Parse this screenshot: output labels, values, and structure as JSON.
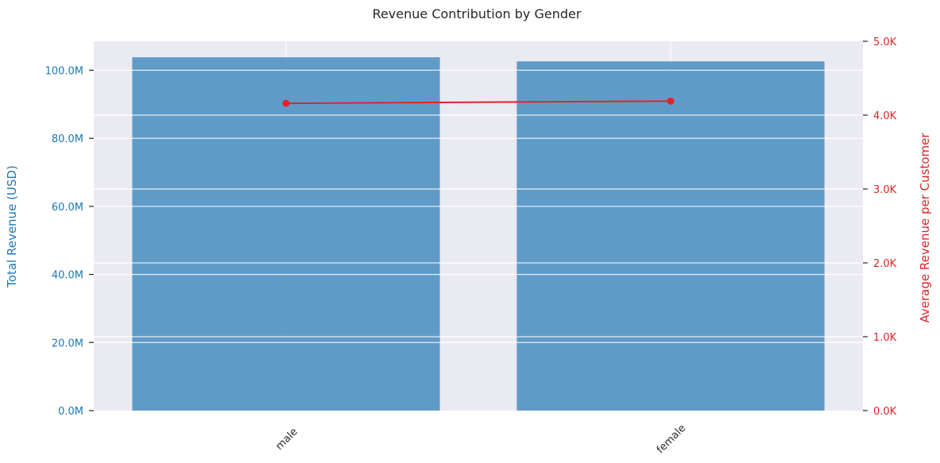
{
  "chart_data": {
    "type": "bar",
    "title": "Revenue Contribution by Gender",
    "categories": [
      "male",
      "female"
    ],
    "series": [
      {
        "axis": "left",
        "type": "bar",
        "values": [
          103800000,
          102600000
        ],
        "color": "#4c8fc2"
      },
      {
        "axis": "right",
        "type": "line",
        "values": [
          4160,
          4190
        ],
        "color": "#e0242a"
      }
    ],
    "ylabel": "Total Revenue (USD)",
    "ylabel_right": "Average Revenue per Customer",
    "ylim": [
      0,
      108500000
    ],
    "ylim_right": [
      0,
      5000
    ],
    "yticks": [
      "0.0M",
      "20.0M",
      "40.0M",
      "60.0M",
      "80.0M",
      "100.0M"
    ],
    "yticks_right": [
      "0.0K",
      "1.0K",
      "2.0K",
      "3.0K",
      "4.0K",
      "5.0K"
    ],
    "grid": true,
    "left_color": "#1f77b4",
    "right_color": "#d62728",
    "background": "#eaeaf2"
  }
}
